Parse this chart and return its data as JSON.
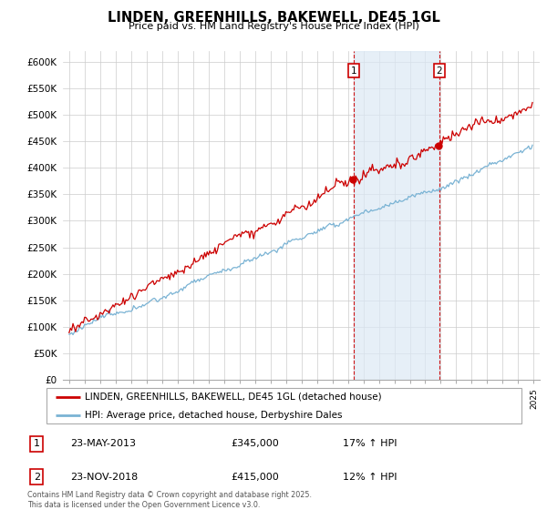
{
  "title": "LINDEN, GREENHILLS, BAKEWELL, DE45 1GL",
  "subtitle": "Price paid vs. HM Land Registry's House Price Index (HPI)",
  "ylabel_ticks": [
    "£0",
    "£50K",
    "£100K",
    "£150K",
    "£200K",
    "£250K",
    "£300K",
    "£350K",
    "£400K",
    "£450K",
    "£500K",
    "£550K",
    "£600K"
  ],
  "ytick_values": [
    0,
    50000,
    100000,
    150000,
    200000,
    250000,
    300000,
    350000,
    400000,
    450000,
    500000,
    550000,
    600000
  ],
  "red_label": "LINDEN, GREENHILLS, BAKEWELL, DE45 1GL (detached house)",
  "blue_label": "HPI: Average price, detached house, Derbyshire Dales",
  "annotation1": {
    "num": "1",
    "date": "23-MAY-2013",
    "price": "£345,000",
    "pct": "17% ↑ HPI"
  },
  "annotation2": {
    "num": "2",
    "date": "23-NOV-2018",
    "price": "£415,000",
    "pct": "12% ↑ HPI"
  },
  "footer": "Contains HM Land Registry data © Crown copyright and database right 2025.\nThis data is licensed under the Open Government Licence v3.0.",
  "red_color": "#cc0000",
  "blue_color": "#7ab3d4",
  "blue_fill": "#dce9f5",
  "grid_color": "#cccccc",
  "background_color": "#ffffff",
  "annotation_box_color": "#cc0000",
  "vline_color": "#cc0000",
  "sale1_year": 2013.37,
  "sale2_year": 2018.9,
  "year_start": 1995,
  "year_end": 2025
}
